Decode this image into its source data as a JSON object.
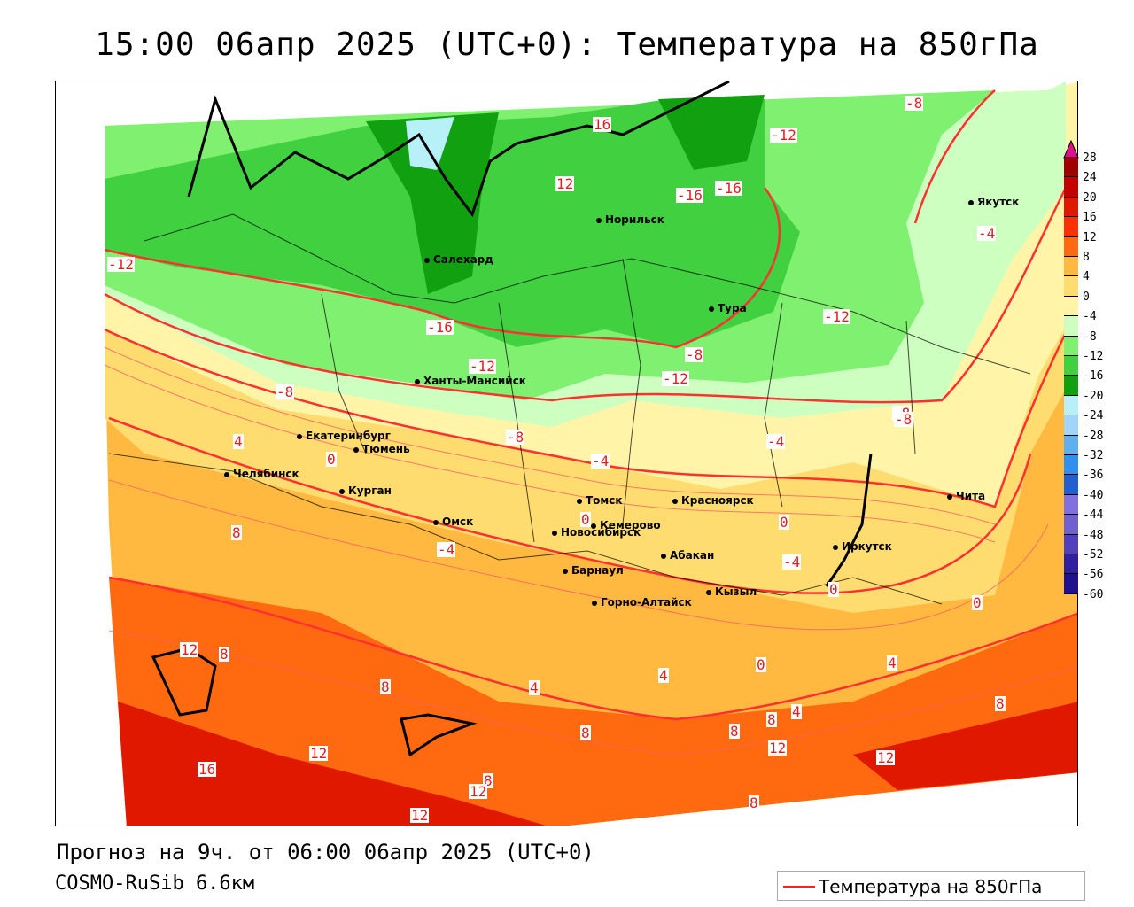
{
  "title": "15:00 06апр 2025 (UTC+0): Температура на 850гПа",
  "footer": {
    "forecast": "Прогноз на 9ч. от 06:00 06апр 2025 (UTC+0)",
    "model": "COSMO-RuSib 6.6км"
  },
  "legend": {
    "label": "Температура на 850гПа",
    "line_color": "#ff2020"
  },
  "colorbar": {
    "ticks": [
      "28",
      "24",
      "20",
      "16",
      "12",
      "8",
      "4",
      "0",
      "-4",
      "-8",
      "-12",
      "-16",
      "-20",
      "-24",
      "-28",
      "-32",
      "-36",
      "-40",
      "-44",
      "-48",
      "-52",
      "-56",
      "-60"
    ],
    "colors": [
      "#a00000",
      "#c40000",
      "#e01800",
      "#ff3000",
      "#ff6a10",
      "#ffb840",
      "#ffdc70",
      "#fff4a8",
      "#ccffc0",
      "#80f070",
      "#40d040",
      "#10a010",
      "#b8f0f8",
      "#a0d4f8",
      "#60b0f0",
      "#3090f0",
      "#2060d0",
      "#8070e0",
      "#7060d0",
      "#5040c0",
      "#3020a0",
      "#201090"
    ],
    "overflow_color": "#e0108c"
  },
  "cities": [
    "Якутск",
    "Норильск",
    "Салехард",
    "Тура",
    "Ханты-Мансийск",
    "Екатеринбург",
    "Тюмень",
    "Челябинск",
    "Курган",
    "Томск",
    "Красноярск",
    "Омск",
    "Новосибирск",
    "Кемерово",
    "Абакан",
    "Иркутск",
    "Чита",
    "Барнаул",
    "Горно-Алтайск",
    "Кызыл"
  ],
  "contour_labels": [
    "-8",
    "16",
    "-12",
    "12",
    "-16",
    "-16",
    "-4",
    "-12",
    "-16",
    "-12",
    "-12",
    "-8",
    "-12",
    "-8",
    "-8",
    "-8",
    "-4",
    "-4",
    "4",
    "0",
    "8",
    "-4",
    "0",
    "0",
    "-4",
    "0",
    "0",
    "4",
    "12",
    "8",
    "8",
    "4",
    "4",
    "8",
    "8",
    "4",
    "0",
    "8",
    "12",
    "12",
    "16",
    "8",
    "12",
    "8",
    "12",
    "8",
    "12",
    "-8"
  ]
}
